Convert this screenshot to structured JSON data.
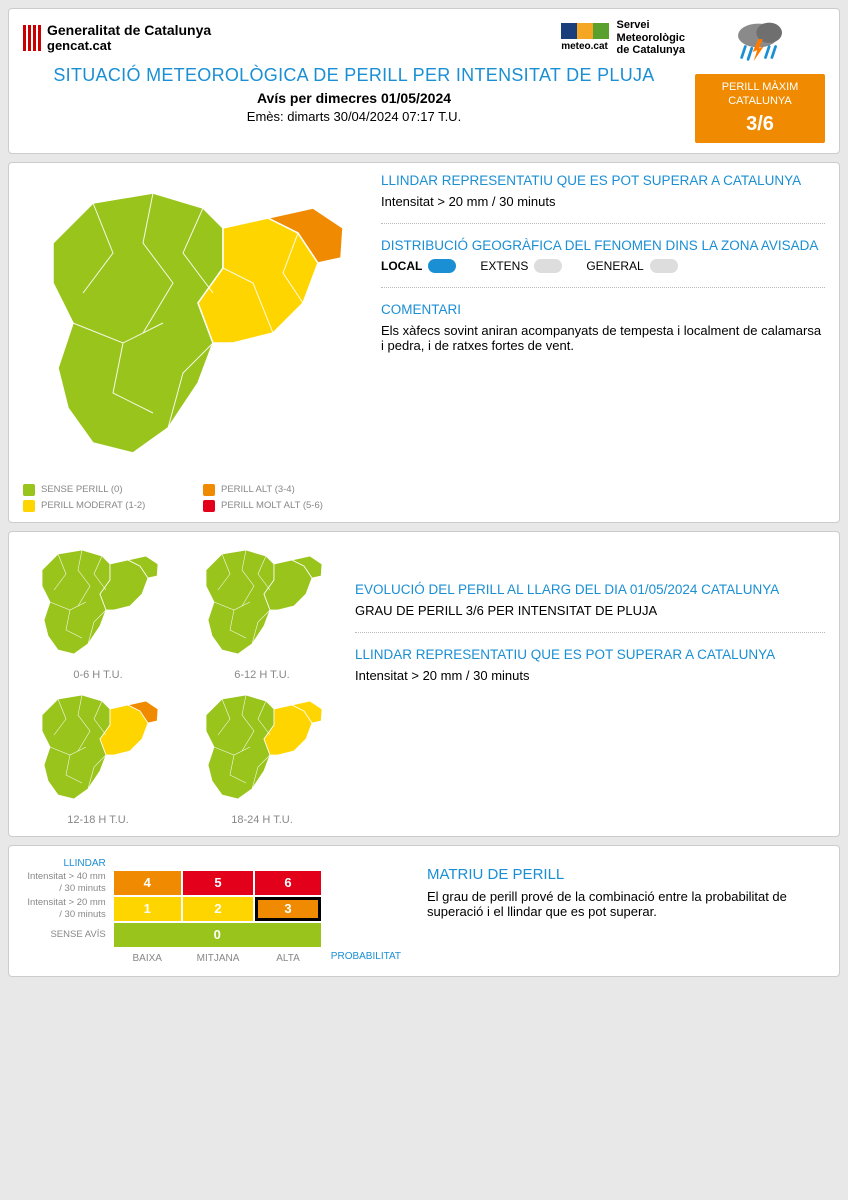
{
  "colors": {
    "green": "#99c41c",
    "yellow": "#ffd500",
    "orange": "#f08a00",
    "red": "#e2001a",
    "blue": "#1a8fd4",
    "grey": "#888888"
  },
  "header": {
    "org_line1": "Generalitat de Catalunya",
    "org_line2": "gencat.cat",
    "meteo_label": "meteo.cat",
    "meteo_name1": "Servei",
    "meteo_name2": "Meteorològic",
    "meteo_name3": "de Catalunya",
    "title": "SITUACIÓ METEOROLÒGICA DE PERILL PER INTENSITAT DE PLUJA",
    "subtitle": "Avís per dimecres 01/05/2024",
    "issued": "Emès: dimarts 30/04/2024 07:17 T.U.",
    "badge_label1": "PERILL MÀXIM",
    "badge_label2": "CATALUNYA",
    "badge_value": "3/6"
  },
  "legend": {
    "items": [
      {
        "label": "SENSE PERILL (0)",
        "color": "#99c41c"
      },
      {
        "label": "PERILL ALT (3-4)",
        "color": "#f08a00"
      },
      {
        "label": "PERILL MODERAT (1-2)",
        "color": "#ffd500"
      },
      {
        "label": "PERILL MOLT ALT (5-6)",
        "color": "#e2001a"
      }
    ]
  },
  "threshold": {
    "title": "LLINDAR REPRESENTATIU QUE ES POT SUPERAR A CATALUNYA",
    "text": "Intensitat > 20 mm / 30 minuts"
  },
  "distribution": {
    "title": "DISTRIBUCIÓ GEOGRÀFICA DEL FENOMEN DINS LA ZONA AVISADA",
    "options": [
      {
        "label": "LOCAL",
        "selected": true
      },
      {
        "label": "EXTENS",
        "selected": false
      },
      {
        "label": "GENERAL",
        "selected": false
      }
    ]
  },
  "comment": {
    "title": "COMENTARI",
    "text": "Els xàfecs sovint aniran acompanyats de tempesta i localment de calamarsa i pedra, i de ratxes fortes de vent."
  },
  "evolution": {
    "title": "EVOLUCIÓ DEL PERILL AL LLARG DEL DIA 01/05/2024 CATALUNYA",
    "subtitle": "GRAU DE PERILL 3/6 PER INTENSITAT DE PLUJA",
    "threshold_title": "LLINDAR REPRESENTATIU QUE ES POT SUPERAR A CATALUNYA",
    "threshold_text": "Intensitat > 20 mm / 30 minuts",
    "periods": [
      {
        "label": "0-6 H T.U.",
        "ne_fill": "#99c41c",
        "e_fill": "#99c41c"
      },
      {
        "label": "6-12 H T.U.",
        "ne_fill": "#99c41c",
        "e_fill": "#99c41c"
      },
      {
        "label": "12-18 H T.U.",
        "ne_fill": "#f08a00",
        "e_fill": "#ffd500"
      },
      {
        "label": "18-24 H T.U.",
        "ne_fill": "#ffd500",
        "e_fill": "#ffd500"
      }
    ]
  },
  "matrix": {
    "title": "MATRIU DE PERILL",
    "desc": "El grau de perill prové de la combinació entre la probabilitat de superació i el llindar que es pot superar.",
    "axis_y": "LLINDAR",
    "axis_x": "PROBABILITAT",
    "row_labels": [
      "Intensitat > 40 mm / 30 minuts",
      "Intensitat > 20 mm / 30 minuts",
      "SENSE AVÍS"
    ],
    "col_labels": [
      "BAIXA",
      "MITJANA",
      "ALTA"
    ],
    "cells": [
      [
        {
          "v": "4",
          "c": "#f08a00"
        },
        {
          "v": "5",
          "c": "#e2001a"
        },
        {
          "v": "6",
          "c": "#e2001a"
        }
      ],
      [
        {
          "v": "1",
          "c": "#ffd500"
        },
        {
          "v": "2",
          "c": "#ffd500"
        },
        {
          "v": "3",
          "c": "#f08a00",
          "sel": true
        }
      ],
      [
        {
          "v": "0",
          "c": "#99c41c",
          "span": 3
        }
      ]
    ]
  },
  "main_map": {
    "ne_fill": "#f08a00",
    "e_fill": "#ffd500",
    "rest_fill": "#99c41c"
  }
}
